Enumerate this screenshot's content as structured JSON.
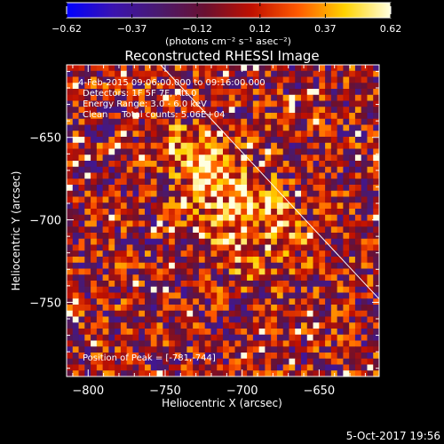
{
  "chart_data": {
    "type": "heatmap",
    "title": "Reconstructed RHESSI Image",
    "xlabel": "Heliocentric X (arcsec)",
    "ylabel": "Heliocentric Y (arcsec)",
    "xlim": [
      -814,
      -611
    ],
    "ylim": [
      -795,
      -606
    ],
    "x_ticks": [
      -800,
      -750,
      -700,
      -650
    ],
    "x_tick_labels": [
      "−800",
      "−750",
      "−700",
      "−650"
    ],
    "y_ticks": [
      -650,
      -700,
      -750
    ],
    "y_tick_labels": [
      "−650",
      "−700",
      "−750"
    ],
    "colorbar": {
      "min": -0.62,
      "max": 0.62,
      "ticks": [
        -0.62,
        -0.37,
        -0.12,
        0.12,
        0.37,
        0.62
      ],
      "tick_labels": [
        "−0.62",
        "−0.37",
        "−0.12",
        "0.12",
        "0.37",
        "0.62"
      ],
      "units": "(photons cm⁻² s⁻¹ asec⁻²)",
      "colors": [
        "#0000ff",
        "#3a13b0",
        "#4a1a6e",
        "#6a1030",
        "#c01000",
        "#ff5a00",
        "#ffd200",
        "#ffffe0"
      ]
    },
    "annotations": [
      "4-Feb-2015 09:06:00.000 to 09:16:00.000",
      "Detectors: 1F 5F 7F, Att 0",
      "Energy Range: 3.0 - 6.0 keV",
      "Clean     Total counts: 5.06E+04",
      "Position of Peak = [-781,-744]"
    ],
    "peak_position": [
      -781,
      -744
    ],
    "limb_line": [
      [
        -753,
        -606
      ],
      [
        -611,
        -748
      ]
    ],
    "sources": [
      {
        "center": [
          -722,
          -670
        ],
        "value": 0.5
      },
      {
        "center": [
          -683,
          -694
        ],
        "value": 0.35
      },
      {
        "center": [
          -708,
          -712
        ],
        "value": 0.3
      }
    ],
    "grid": false,
    "legend": "none"
  },
  "footer": {
    "timestamp": "5-Oct-2017 19:56"
  }
}
